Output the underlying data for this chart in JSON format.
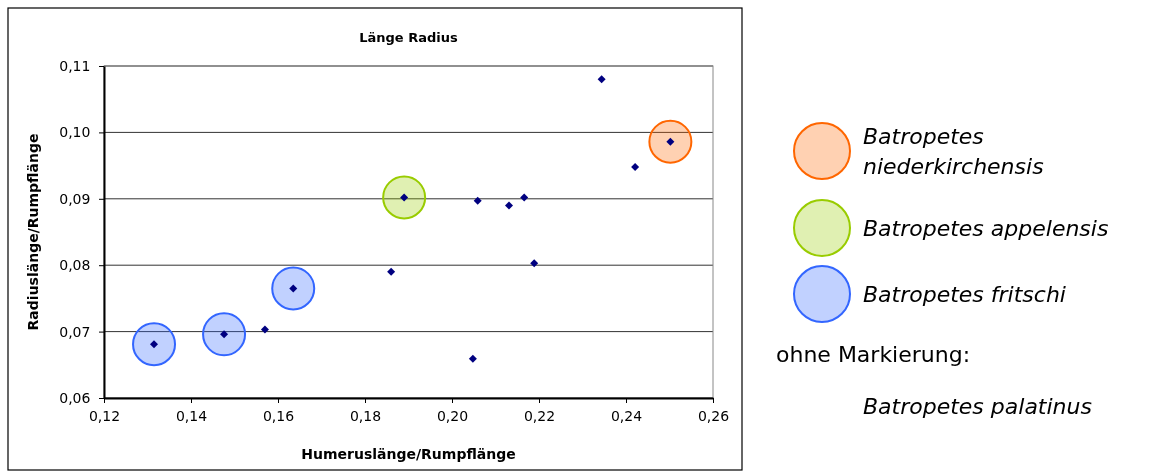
{
  "chart_data": {
    "type": "scatter",
    "title": "Länge Radius",
    "xlabel": "Humeruslänge/Rumpflänge",
    "ylabel": "Radiuslänge/Rumpflänge",
    "xlim": [
      0.12,
      0.26
    ],
    "xticks": [
      {
        "value": 0.12,
        "label": "0,12"
      },
      {
        "value": 0.14,
        "label": "0,14"
      },
      {
        "value": 0.16,
        "label": "0,16"
      },
      {
        "value": 0.18,
        "label": "0,18"
      },
      {
        "value": 0.2,
        "label": "0,20"
      },
      {
        "value": 0.22,
        "label": "0,22"
      },
      {
        "value": 0.24,
        "label": "0,24"
      },
      {
        "value": 0.26,
        "label": "0,26"
      }
    ],
    "ylim": [
      0.06,
      0.11
    ],
    "yticks": [
      {
        "value": 0.06,
        "label": "0,06"
      },
      {
        "value": 0.07,
        "label": "0,07"
      },
      {
        "value": 0.08,
        "label": "0,08"
      },
      {
        "value": 0.09,
        "label": "0,09"
      },
      {
        "value": 0.1,
        "label": "0,10"
      },
      {
        "value": 0.11,
        "label": "0,11"
      }
    ],
    "grid": "y",
    "legend": "right",
    "series": [
      {
        "name": "Batropetes niederkirchensis",
        "color": "#ff6600",
        "marker": "circle",
        "x": [
          0.2502
        ],
        "values": [
          0.0986
        ]
      },
      {
        "name": "Batropetes appelensis",
        "color": "#99cc00",
        "marker": "circle",
        "x": [
          0.189
        ],
        "values": [
          0.0902
        ]
      },
      {
        "name": "Batropetes fritschi",
        "color": "#3366ff",
        "marker": "circle",
        "x": [
          0.1315,
          0.1476,
          0.1635
        ],
        "values": [
          0.0681,
          0.0696,
          0.0765
        ]
      },
      {
        "color": "#000080",
        "marker": "diamond",
        "x": [
          0.1315,
          0.1476,
          0.157,
          0.1635,
          0.186,
          0.189,
          0.2059,
          0.2131,
          0.2166,
          0.2189,
          0.2048,
          0.2344,
          0.2421,
          0.2502
        ],
        "values": [
          0.0681,
          0.0696,
          0.0703,
          0.0765,
          0.079,
          0.0902,
          0.0897,
          0.089,
          0.0902,
          0.0803,
          0.0659,
          0.108,
          0.0948,
          0.0986
        ]
      }
    ],
    "annotations": [
      "ohne Markierung:",
      "Batropetes palatinus"
    ]
  }
}
